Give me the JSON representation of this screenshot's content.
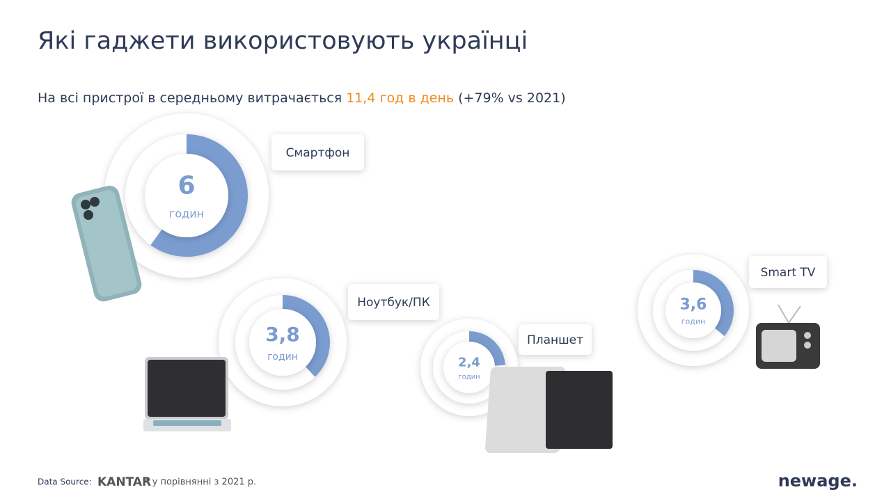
{
  "title": "Які гаджети використовують українці",
  "subtitle": {
    "before": "На всі пристрої в середньому витрачається",
    "highlight": "11,4 год в день",
    "after": "(+79% vs 2021)"
  },
  "chart_data": [
    {
      "type": "donut",
      "title": "Смартфон",
      "values": [
        6
      ],
      "unit": "годин",
      "ylim": [
        0,
        10
      ],
      "color": "#7a9ccf"
    },
    {
      "type": "donut",
      "title": "Ноутбук/ПК",
      "values": [
        3.8
      ],
      "value_labels": [
        "3,8"
      ],
      "unit": "годин",
      "ylim": [
        0,
        10
      ],
      "color": "#7a9ccf"
    },
    {
      "type": "donut",
      "title": "Планшет",
      "values": [
        2.4
      ],
      "value_labels": [
        "2,4"
      ],
      "unit": "годин",
      "ylim": [
        0,
        10
      ],
      "color": "#7a9ccf"
    },
    {
      "type": "donut",
      "title": "Smart TV",
      "values": [
        3.6
      ],
      "value_labels": [
        "3,6"
      ],
      "unit": "годин",
      "ylim": [
        0,
        10
      ],
      "color": "#7a9ccf"
    }
  ],
  "footer": {
    "source_label": "Data Source:",
    "source": "KANTAR",
    "note": "* у порівнянні з 2021 р."
  },
  "logo": "newage."
}
